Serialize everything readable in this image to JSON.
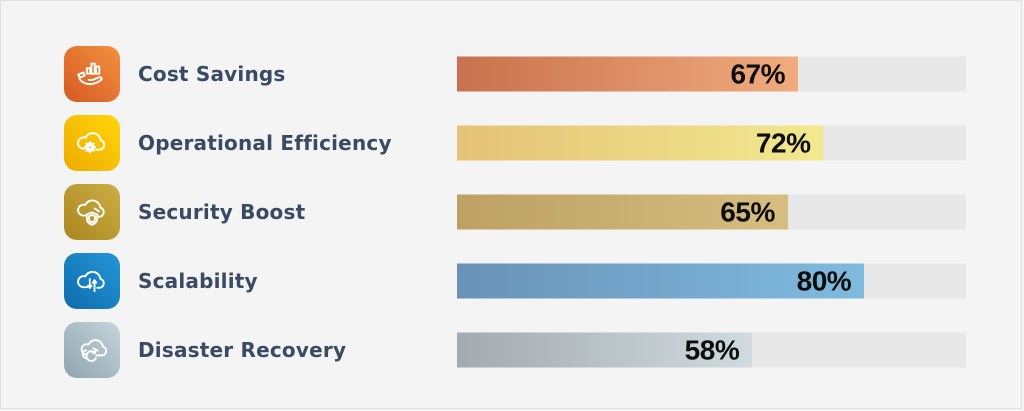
{
  "page": {
    "background": "#f4f4f5",
    "track_color": "#e8e8e8",
    "label_color": "#3b4a63",
    "value_color": "#0d0d0d"
  },
  "chart_data": {
    "type": "bar",
    "orientation": "horizontal",
    "title": "",
    "xlabel": "",
    "ylabel": "",
    "xlim": [
      0,
      100
    ],
    "grid": false,
    "legend": false,
    "categories": [
      "Cost Savings",
      "Operational Efficiency",
      "Security Boost",
      "Scalability",
      "Disaster Recovery"
    ],
    "values": [
      67,
      72,
      65,
      80,
      58
    ],
    "value_labels": [
      "67%",
      "72%",
      "65%",
      "80%",
      "58%"
    ],
    "bar_colors": [
      "#ea9d71",
      "#efe085",
      "#ceb577",
      "#76aed4",
      "#c2ccd1"
    ]
  },
  "rows": [
    {
      "label": "Cost Savings",
      "icon": "hand-holding-chart-icon",
      "value": 67,
      "value_label": "67%",
      "bar_from": "#c9714e",
      "bar_to": "#f0ab7e",
      "icon_from": "#d35a22",
      "icon_to": "#f5913f"
    },
    {
      "label": "Operational Efficiency",
      "icon": "cloud-gear-icon",
      "value": 72,
      "value_label": "72%",
      "bar_from": "#e5c277",
      "bar_to": "#f2e98e",
      "icon_from": "#eeab00",
      "icon_to": "#ffd60a"
    },
    {
      "label": "Security Boost",
      "icon": "cloud-shield-icon",
      "value": 65,
      "value_label": "65%",
      "bar_from": "#bda164",
      "bar_to": "#d6bd80",
      "icon_from": "#a9861f",
      "icon_to": "#cfae45"
    },
    {
      "label": "Scalability",
      "icon": "cloud-scale-arrows-icon",
      "value": 80,
      "value_label": "80%",
      "bar_from": "#6a92b8",
      "bar_to": "#7fbbdf",
      "icon_from": "#0e6cac",
      "icon_to": "#2496d8"
    },
    {
      "label": "Disaster Recovery",
      "icon": "cloud-refresh-icon",
      "value": 58,
      "value_label": "58%",
      "bar_from": "#a3aab0",
      "bar_to": "#d0dbdf",
      "icon_from": "#8ea4ae",
      "icon_to": "#c6d5db"
    }
  ]
}
